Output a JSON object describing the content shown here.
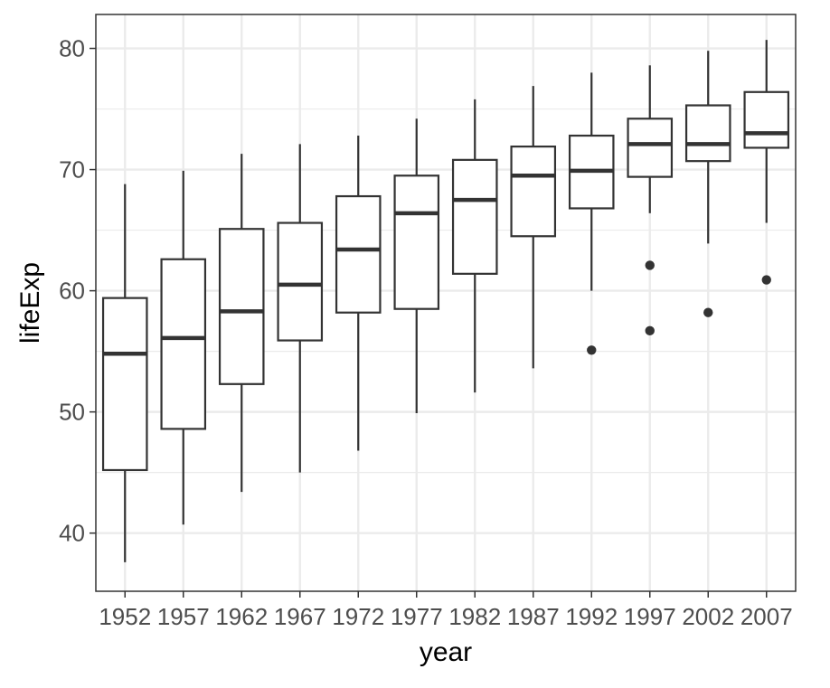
{
  "chart_data": {
    "type": "boxplot",
    "xlabel": "year",
    "ylabel": "lifeExp",
    "categories": [
      "1952",
      "1957",
      "1962",
      "1967",
      "1972",
      "1977",
      "1982",
      "1987",
      "1992",
      "1997",
      "2002",
      "2007"
    ],
    "ylim": [
      35.2,
      82.8
    ],
    "yticks": [
      40,
      50,
      60,
      70,
      80
    ],
    "grid": true,
    "legend": "none",
    "colors": {
      "box_stroke": "#333333",
      "box_fill": "#ffffff",
      "grid": "#ebebeb",
      "panel_border": "#333333"
    },
    "boxes": [
      {
        "category": "1952",
        "lower_whisker": 37.6,
        "q1": 45.2,
        "median": 54.8,
        "q3": 59.4,
        "upper_whisker": 68.8,
        "outliers": []
      },
      {
        "category": "1957",
        "lower_whisker": 40.7,
        "q1": 48.6,
        "median": 56.1,
        "q3": 62.6,
        "upper_whisker": 69.9,
        "outliers": []
      },
      {
        "category": "1962",
        "lower_whisker": 43.4,
        "q1": 52.3,
        "median": 58.3,
        "q3": 65.1,
        "upper_whisker": 71.3,
        "outliers": []
      },
      {
        "category": "1967",
        "lower_whisker": 45.0,
        "q1": 55.9,
        "median": 60.5,
        "q3": 65.6,
        "upper_whisker": 72.1,
        "outliers": []
      },
      {
        "category": "1972",
        "lower_whisker": 46.8,
        "q1": 58.2,
        "median": 63.4,
        "q3": 67.8,
        "upper_whisker": 72.8,
        "outliers": []
      },
      {
        "category": "1977",
        "lower_whisker": 49.9,
        "q1": 58.5,
        "median": 66.4,
        "q3": 69.5,
        "upper_whisker": 74.2,
        "outliers": []
      },
      {
        "category": "1982",
        "lower_whisker": 51.6,
        "q1": 61.4,
        "median": 67.5,
        "q3": 70.8,
        "upper_whisker": 75.8,
        "outliers": []
      },
      {
        "category": "1987",
        "lower_whisker": 53.6,
        "q1": 64.5,
        "median": 69.5,
        "q3": 71.9,
        "upper_whisker": 76.9,
        "outliers": []
      },
      {
        "category": "1992",
        "lower_whisker": 60.0,
        "q1": 66.8,
        "median": 69.9,
        "q3": 72.8,
        "upper_whisker": 78.0,
        "outliers": [
          55.1
        ]
      },
      {
        "category": "1997",
        "lower_whisker": 66.4,
        "q1": 69.4,
        "median": 72.1,
        "q3": 74.2,
        "upper_whisker": 78.6,
        "outliers": [
          62.1,
          56.7
        ]
      },
      {
        "category": "2002",
        "lower_whisker": 63.9,
        "q1": 70.7,
        "median": 72.1,
        "q3": 75.3,
        "upper_whisker": 79.8,
        "outliers": [
          58.2
        ]
      },
      {
        "category": "2007",
        "lower_whisker": 65.6,
        "q1": 71.8,
        "median": 73.0,
        "q3": 76.4,
        "upper_whisker": 80.7,
        "outliers": [
          60.9
        ]
      }
    ]
  }
}
